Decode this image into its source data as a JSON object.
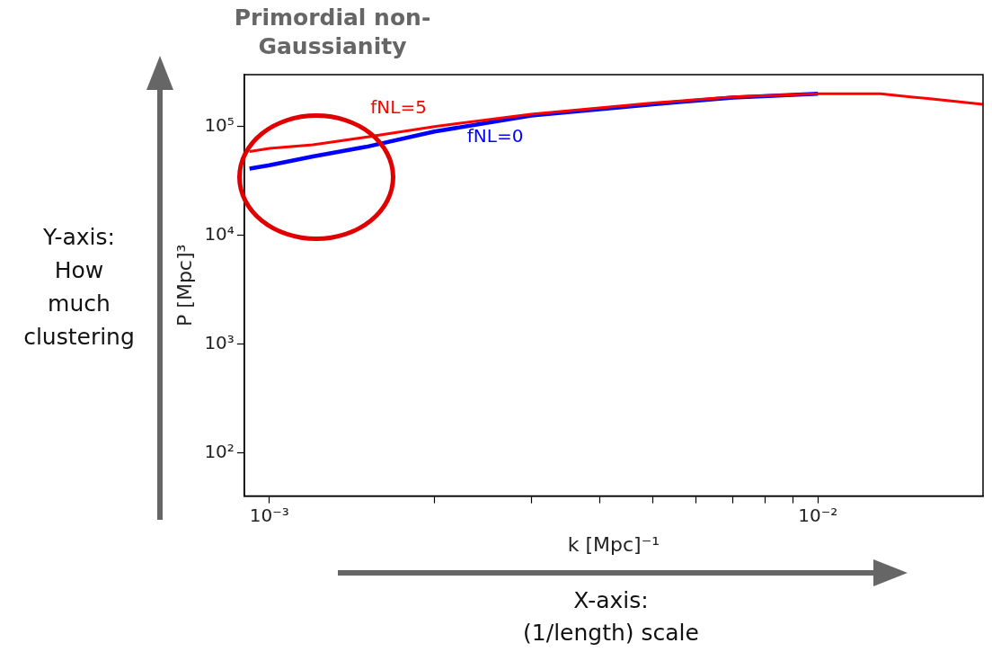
{
  "chart_data": {
    "type": "line",
    "title": "Primordial non-Gaussianity",
    "xlabel": "k [Mpc]⁻¹",
    "ylabel": "P [Mpc]³",
    "annotations": [
      "Y-axis:\nHow\nmuch\nclustering",
      "X-axis:\n(1/length) scale"
    ],
    "x": [
      0.00092,
      0.001,
      0.0012,
      0.0015,
      0.002,
      0.003,
      0.005,
      0.007,
      0.01,
      0.013,
      0.016,
      0.02
    ],
    "series": [
      {
        "name": "fNL=0",
        "color": "#0000ff",
        "values": [
          41000,
          44000,
          53000,
          65000,
          90000,
          126000,
          160000,
          185000,
          200000,
          null,
          null,
          null
        ]
      },
      {
        "name": "fNL=5",
        "color": "#ff0000",
        "values": [
          59000,
          63000,
          68000,
          80000,
          100000,
          130000,
          165000,
          187000,
          200000,
          200000,
          180000,
          160000
        ]
      }
    ],
    "log": "xy",
    "xlim": [
      0.0009,
      0.02
    ],
    "ylim": [
      40,
      300000
    ],
    "xticks": [
      {
        "value": 0.001,
        "label": "10⁻³"
      },
      {
        "value": 0.002,
        "label": null
      },
      {
        "value": 0.003,
        "label": null
      },
      {
        "value": 0.004,
        "label": null
      },
      {
        "value": 0.005,
        "label": null
      },
      {
        "value": 0.006,
        "label": null
      },
      {
        "value": 0.007,
        "label": null
      },
      {
        "value": 0.008,
        "label": null
      },
      {
        "value": 0.009,
        "label": null
      },
      {
        "value": 0.01,
        "label": "10⁻²"
      }
    ],
    "yticks": [
      {
        "value": 100,
        "label": "10²"
      },
      {
        "value": 1000,
        "label": "10³"
      },
      {
        "value": 10000,
        "label": "10⁴"
      },
      {
        "value": 100000,
        "label": "10⁵"
      }
    ],
    "grid": false,
    "legend": false,
    "line_style": "solid",
    "marker": "none"
  }
}
